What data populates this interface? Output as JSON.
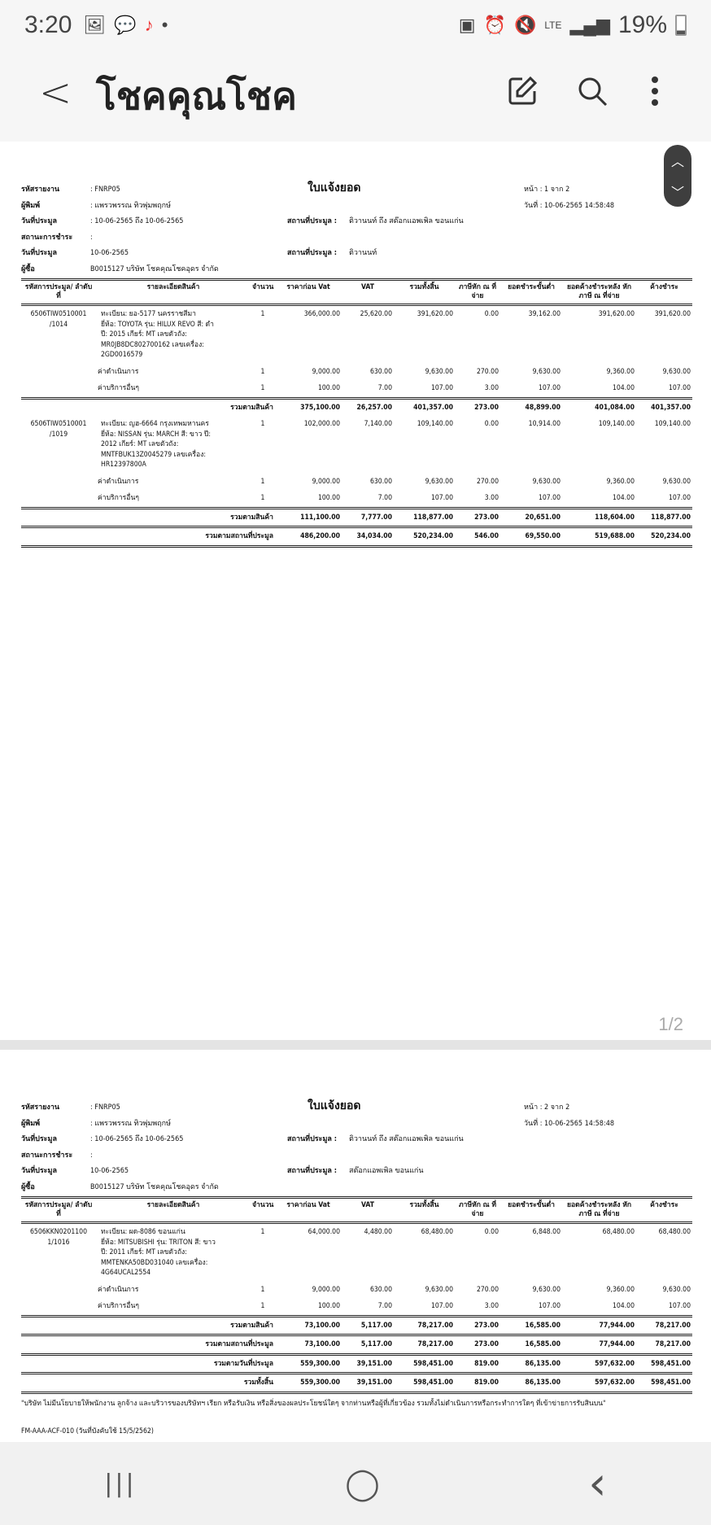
{
  "status_bar": {
    "time": "3:20",
    "battery": "19%",
    "network": "LTE",
    "icons": [
      "gallery-icon",
      "line-icon",
      "tiktok-icon",
      "dot-icon",
      "battery-saver-icon",
      "alarm-icon",
      "mute-icon",
      "lte-icon",
      "signal-icon",
      "battery-icon"
    ]
  },
  "app_bar": {
    "title": "โชคคุณโชค",
    "icons": [
      "back-icon",
      "edit-icon",
      "search-icon",
      "more-icon"
    ]
  },
  "pages": [
    {
      "indicator": "1/2",
      "header": {
        "title": "ใบแจ้งยอด",
        "report_code_label": "รหัสรายงาน",
        "report_code": ": FNRP05",
        "printer_label": "ผู้พิมพ์",
        "printer": ": แพรวพรรณ ทิวพุ่มพฤกษ์",
        "auction_date_label": "วันที่ประมูล",
        "auction_date": ": 10-06-2565 ถึง 10-06-2565",
        "location_label": "สถานที่ประมูล :",
        "location": "ติวานนท์ ถึง สต๊อกแอพเพิล ขอนแก่น",
        "payment_status_label": "สถานะการชำระ",
        "payment_status": ":",
        "date2_label": "วันที่ประมูล",
        "date2": "10-06-2565",
        "location2_label": "สถานที่ประมูล :",
        "location2": "ติวานนท์",
        "buyer_label": "ผู้ซื้อ",
        "buyer": "B0015127 บริษัท โชคคุณโชคอุดร  จำกัด",
        "page_label": "หน้า : 1 จาก 2",
        "date_label": "วันที่ : 10-06-2565 14:58:48"
      },
      "rows": [
        {
          "type": "item",
          "code": "6506TIW0510001\n/1014",
          "desc": "ทะเบียน: ยอ-5177 นครราชสีมา\nยี่ห้อ: TOYOTA รุ่น: HILUX REVO  สี: ดำ\nปี: 2015 เกียร์: MT เลขตัวถัง:\nMR0JB8DC802700162 เลขเครื่อง:\n2GD0016579",
          "qty": "1",
          "v": [
            "366,000.00",
            "25,620.00",
            "391,620.00",
            "0.00",
            "39,162.00",
            "391,620.00",
            "391,620.00"
          ]
        },
        {
          "type": "fee",
          "desc": "ค่าดำเนินการ",
          "qty": "1",
          "v": [
            "9,000.00",
            "630.00",
            "9,630.00",
            "270.00",
            "9,630.00",
            "9,360.00",
            "9,630.00"
          ]
        },
        {
          "type": "fee",
          "desc": "ค่าบริการอื่นๆ",
          "qty": "1",
          "v": [
            "100.00",
            "7.00",
            "107.00",
            "3.00",
            "107.00",
            "104.00",
            "107.00"
          ]
        },
        {
          "type": "sub",
          "desc": "รวมตามสินค้า",
          "v": [
            "375,100.00",
            "26,257.00",
            "401,357.00",
            "273.00",
            "48,899.00",
            "401,084.00",
            "401,357.00"
          ]
        },
        {
          "type": "item",
          "code": "6506TIW0510001\n/1019",
          "desc": "ทะเบียน: ญฮ-6664 กรุงเทพมหานคร\nยี่ห้อ: NISSAN รุ่น: MARCH  สี: ขาว ปี:\n2012 เกียร์: MT เลขตัวถัง:\nMNTFBUK13Z0045279 เลขเครื่อง:\nHR12397800A",
          "qty": "1",
          "v": [
            "102,000.00",
            "7,140.00",
            "109,140.00",
            "0.00",
            "10,914.00",
            "109,140.00",
            "109,140.00"
          ]
        },
        {
          "type": "fee",
          "desc": "ค่าดำเนินการ",
          "qty": "1",
          "v": [
            "9,000.00",
            "630.00",
            "9,630.00",
            "270.00",
            "9,630.00",
            "9,360.00",
            "9,630.00"
          ]
        },
        {
          "type": "fee",
          "desc": "ค่าบริการอื่นๆ",
          "qty": "1",
          "v": [
            "100.00",
            "7.00",
            "107.00",
            "3.00",
            "107.00",
            "104.00",
            "107.00"
          ]
        },
        {
          "type": "sub",
          "desc": "รวมตามสินค้า",
          "v": [
            "111,100.00",
            "7,777.00",
            "118,877.00",
            "273.00",
            "20,651.00",
            "118,604.00",
            "118,877.00"
          ]
        },
        {
          "type": "sub",
          "desc": "รวมตามสถานที่ประมูล",
          "v": [
            "486,200.00",
            "34,034.00",
            "520,234.00",
            "546.00",
            "69,550.00",
            "519,688.00",
            "520,234.00"
          ]
        }
      ]
    },
    {
      "indicator": "",
      "header": {
        "title": "ใบแจ้งยอด",
        "report_code_label": "รหัสรายงาน",
        "report_code": ": FNRP05",
        "printer_label": "ผู้พิมพ์",
        "printer": ": แพรวพรรณ ทิวพุ่มพฤกษ์",
        "auction_date_label": "วันที่ประมูล",
        "auction_date": ": 10-06-2565 ถึง 10-06-2565",
        "location_label": "สถานที่ประมูล :",
        "location": "ติวานนท์ ถึง สต๊อกแอพเพิล ขอนแก่น",
        "payment_status_label": "สถานะการชำระ",
        "payment_status": ":",
        "date2_label": "วันที่ประมูล",
        "date2": "10-06-2565",
        "location2_label": "สถานที่ประมูล :",
        "location2": "สต๊อกแอพเพิล ขอนแก่น",
        "buyer_label": "ผู้ซื้อ",
        "buyer": "B0015127 บริษัท โชคคุณโชคอุดร  จำกัด",
        "page_label": "หน้า : 2 จาก 2",
        "date_label": "วันที่ : 10-06-2565 14:58:48"
      },
      "rows": [
        {
          "type": "item",
          "code": "6506KKN0201100\n1/1016",
          "desc": "ทะเบียน: ผด-8086 ขอนแก่น\nยี่ห้อ: MITSUBISHI รุ่น: TRITON  สี: ขาว\nปี: 2011 เกียร์: MT เลขตัวถัง:\nMMTENKA50BD031040 เลขเครื่อง:\n4G64UCAL2554",
          "qty": "1",
          "v": [
            "64,000.00",
            "4,480.00",
            "68,480.00",
            "0.00",
            "6,848.00",
            "68,480.00",
            "68,480.00"
          ]
        },
        {
          "type": "fee",
          "desc": "ค่าดำเนินการ",
          "qty": "1",
          "v": [
            "9,000.00",
            "630.00",
            "9,630.00",
            "270.00",
            "9,630.00",
            "9,360.00",
            "9,630.00"
          ]
        },
        {
          "type": "fee",
          "desc": "ค่าบริการอื่นๆ",
          "qty": "1",
          "v": [
            "100.00",
            "7.00",
            "107.00",
            "3.00",
            "107.00",
            "104.00",
            "107.00"
          ]
        },
        {
          "type": "sub",
          "desc": "รวมตามสินค้า",
          "v": [
            "73,100.00",
            "5,117.00",
            "78,217.00",
            "273.00",
            "16,585.00",
            "77,944.00",
            "78,217.00"
          ]
        },
        {
          "type": "sub",
          "desc": "รวมตามสถานที่ประมูล",
          "v": [
            "73,100.00",
            "5,117.00",
            "78,217.00",
            "273.00",
            "16,585.00",
            "77,944.00",
            "78,217.00"
          ]
        },
        {
          "type": "sub",
          "desc": "รวมตามวันที่ประมูล",
          "v": [
            "559,300.00",
            "39,151.00",
            "598,451.00",
            "819.00",
            "86,135.00",
            "597,632.00",
            "598,451.00"
          ]
        },
        {
          "type": "sub",
          "desc": "รวมทั้งสิ้น",
          "v": [
            "559,300.00",
            "39,151.00",
            "598,451.00",
            "819.00",
            "86,135.00",
            "597,632.00",
            "598,451.00"
          ]
        }
      ],
      "note": "\"บริษัท ไม่มีนโยบายให้พนักงาน ลูกจ้าง และบริวารของบริษัทฯ เรียก หรือรับเงิน หรือสิ่งของผลประโยชน์ใดๆ จากท่านหรือผู้ที่เกี่ยวข้อง รวมทั้งไม่ดำเนินการหรือกระทำการใดๆ ที่เข้าข่ายการรับสินบน\"",
      "form_code": "FM-AAA-ACF-010 (วันที่บังคับใช้ 15/5/2562)"
    }
  ],
  "columns": [
    "รหัสการประมูล/ ลำดับที่",
    "รายละเอียดสินค้า",
    "จำนวน",
    "ราคาก่อน Vat",
    "VAT",
    "รวมทั้งสิ้น",
    "ภาษีหัก ณ ที่จ่าย",
    "ยอดชำระขั้นต่ำ",
    "ยอดค้างชำระหลัง หักภาษี ณ ที่จ่าย",
    "ค้างชำระ"
  ],
  "scroll_buttons": {
    "up": "︿",
    "down": "﹀"
  },
  "nav_bar": {
    "recents": "|||",
    "home": "◯",
    "back": "‹"
  }
}
